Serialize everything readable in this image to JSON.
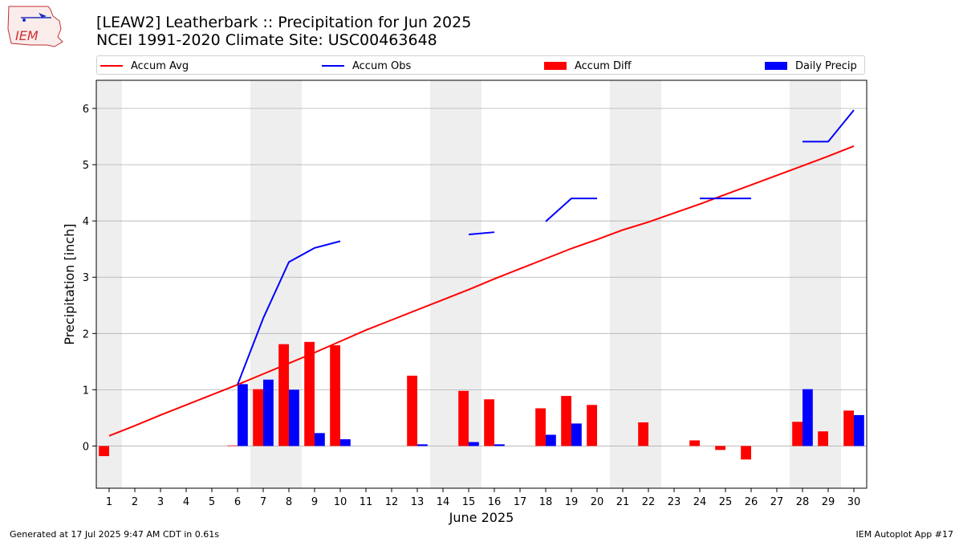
{
  "header": {
    "title_line1": "[LEAW2] Leatherbark :: Precipitation for Jun 2025",
    "title_line2": "NCEI 1991-2020 Climate Site: USC00463648",
    "logo_text": "IEM"
  },
  "legend": {
    "accum_avg": "Accum Avg",
    "accum_obs": "Accum Obs",
    "accum_diff": "Accum Diff",
    "daily_precip": "Daily Precip"
  },
  "footer": {
    "generated": "Generated at 17 Jul 2025 9:47 AM CDT in 0.61s",
    "app": "IEM Autoplot App #17"
  },
  "colors": {
    "accum_avg": "#ff0000",
    "accum_obs": "#0000ff",
    "accum_diff": "#ff0000",
    "daily_precip": "#0000ff",
    "weekend_band": "#eeeeee",
    "grid": "#b0b0b0"
  },
  "chart_data": {
    "type": "bar",
    "xlabel": "June 2025",
    "ylabel": "Precipitation [inch]",
    "ylim": [
      -0.75,
      6.5
    ],
    "yticks": [
      0,
      1,
      2,
      3,
      4,
      5,
      6
    ],
    "xlim": [
      0.5,
      30.5
    ],
    "days": [
      1,
      2,
      3,
      4,
      5,
      6,
      7,
      8,
      9,
      10,
      11,
      12,
      13,
      14,
      15,
      16,
      17,
      18,
      19,
      20,
      21,
      22,
      23,
      24,
      25,
      26,
      27,
      28,
      29,
      30
    ],
    "weekend_days": [
      1,
      7,
      8,
      14,
      15,
      21,
      22,
      28,
      29
    ],
    "grid": "horizontal",
    "legend_position": "top",
    "series": [
      {
        "name": "Accum Avg",
        "kind": "line",
        "values": [
          0.18,
          0.36,
          0.55,
          0.73,
          0.91,
          1.09,
          1.28,
          1.47,
          1.66,
          1.86,
          2.06,
          2.24,
          2.42,
          2.6,
          2.78,
          2.97,
          3.15,
          3.33,
          3.51,
          3.67,
          3.84,
          3.98,
          4.14,
          4.3,
          4.47,
          4.64,
          4.81,
          4.98,
          5.15,
          5.33
        ]
      },
      {
        "name": "Accum Obs",
        "kind": "line",
        "values": [
          null,
          null,
          null,
          null,
          null,
          1.09,
          2.27,
          3.27,
          3.52,
          3.64,
          null,
          null,
          null,
          null,
          3.76,
          3.8,
          null,
          3.99,
          4.4,
          4.4,
          null,
          null,
          null,
          4.4,
          4.4,
          4.4,
          null,
          5.41,
          5.41,
          5.97
        ]
      },
      {
        "name": "Accum Diff",
        "kind": "bar",
        "values": [
          -0.18,
          null,
          null,
          null,
          null,
          0.01,
          1.01,
          1.81,
          1.85,
          1.79,
          null,
          null,
          1.25,
          null,
          0.98,
          0.83,
          null,
          0.67,
          0.89,
          0.73,
          null,
          0.42,
          null,
          0.1,
          -0.07,
          -0.24,
          null,
          0.43,
          0.26,
          0.63
        ]
      },
      {
        "name": "Daily Precip",
        "kind": "bar",
        "values": [
          null,
          null,
          null,
          null,
          null,
          1.1,
          1.18,
          1.0,
          0.23,
          0.12,
          null,
          null,
          0.03,
          null,
          0.07,
          0.03,
          null,
          0.2,
          0.4,
          null,
          null,
          null,
          null,
          null,
          null,
          null,
          null,
          1.01,
          null,
          0.55
        ]
      }
    ]
  }
}
